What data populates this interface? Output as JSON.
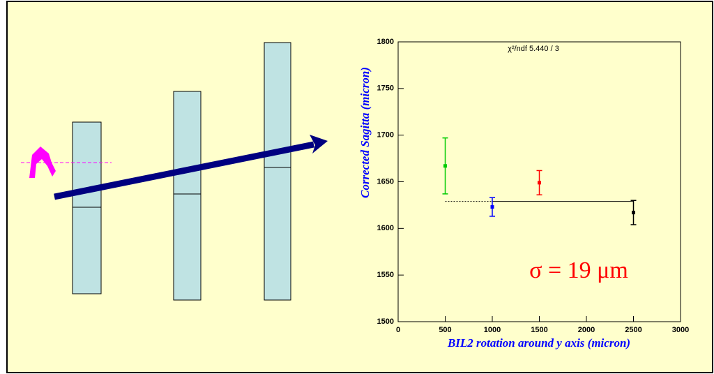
{
  "chart_data": {
    "type": "scatter",
    "xlabel": "BIL2 rotation around y axis (micron)",
    "ylabel": "Corrected Sagitta (micron)",
    "fit_label": "χ²/ndf  5.440 / 3",
    "annotation": "σ = 19 μm",
    "x": [
      500,
      1000,
      1500,
      2500
    ],
    "values": [
      1667,
      1623,
      1649,
      1617
    ],
    "errors": [
      30,
      10,
      13,
      13
    ],
    "colors": [
      "#00cc00",
      "#0000ff",
      "#ff0000",
      "#000000"
    ],
    "fit": {
      "y": 1629,
      "x": [
        500,
        1000,
        2500
      ]
    },
    "xlim": [
      0,
      3000
    ],
    "xticks": [
      0,
      500,
      1000,
      1500,
      2000,
      2500,
      3000
    ],
    "ylim": [
      1500,
      1800
    ],
    "yticks": [
      1500,
      1550,
      1600,
      1650,
      1700,
      1750,
      1800
    ]
  }
}
